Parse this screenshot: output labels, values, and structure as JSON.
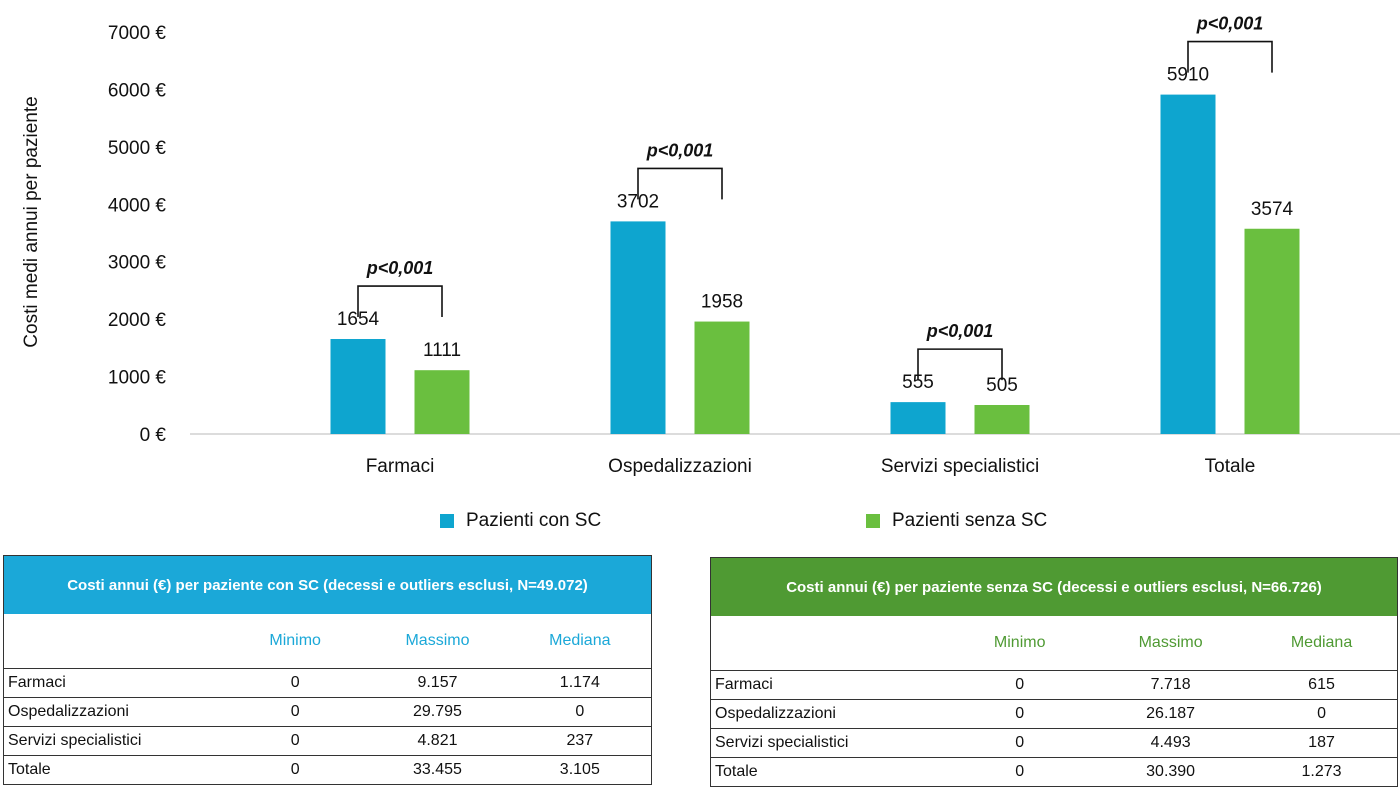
{
  "chart_data": {
    "type": "bar",
    "ylabel": "Costi medi annui per paziente",
    "ylim": [
      0,
      7000
    ],
    "yticks": [
      "0 €",
      "1000 €",
      "2000 €",
      "3000 €",
      "4000 €",
      "5000 €",
      "6000 €",
      "7000 €"
    ],
    "categories": [
      "Farmaci",
      "Ospedalizzazioni",
      "Servizi specialistici",
      "Totale"
    ],
    "series": [
      {
        "name": "Pazienti con SC",
        "color": "#0ea5cf",
        "values": [
          1654,
          3702,
          555,
          5910
        ]
      },
      {
        "name": "Pazienti senza SC",
        "color": "#6abf3f",
        "values": [
          1111,
          1958,
          505,
          3574
        ]
      }
    ],
    "annotations": [
      "p<0,001",
      "p<0,001",
      "p<0,001",
      "p<0,001"
    ],
    "legend_position": "bottom"
  },
  "tables": [
    {
      "title": "Costi annui (€) per paziente con SC (decessi e outliers esclusi, N=49.072)",
      "header_color": "#1ba8d8",
      "col_color": "#1ba8d8",
      "columns": [
        "",
        "Minimo",
        "Massimo",
        "Mediana"
      ],
      "rows": [
        [
          "Farmaci",
          "0",
          "9.157",
          "1.174"
        ],
        [
          "Ospedalizzazioni",
          "0",
          "29.795",
          "0"
        ],
        [
          "Servizi specialistici",
          "0",
          "4.821",
          "237"
        ],
        [
          "Totale",
          "0",
          "33.455",
          "3.105"
        ]
      ]
    },
    {
      "title": "Costi annui (€) per paziente senza SC (decessi e outliers esclusi, N=66.726)",
      "header_color": "#4f9a33",
      "col_color": "#4f9a33",
      "columns": [
        "",
        "Minimo",
        "Massimo",
        "Mediana"
      ],
      "rows": [
        [
          "Farmaci",
          "0",
          "7.718",
          "615"
        ],
        [
          "Ospedalizzazioni",
          "0",
          "26.187",
          "0"
        ],
        [
          "Servizi specialistici",
          "0",
          "4.493",
          "187"
        ],
        [
          "Totale",
          "0",
          "30.390",
          "1.273"
        ]
      ]
    }
  ]
}
